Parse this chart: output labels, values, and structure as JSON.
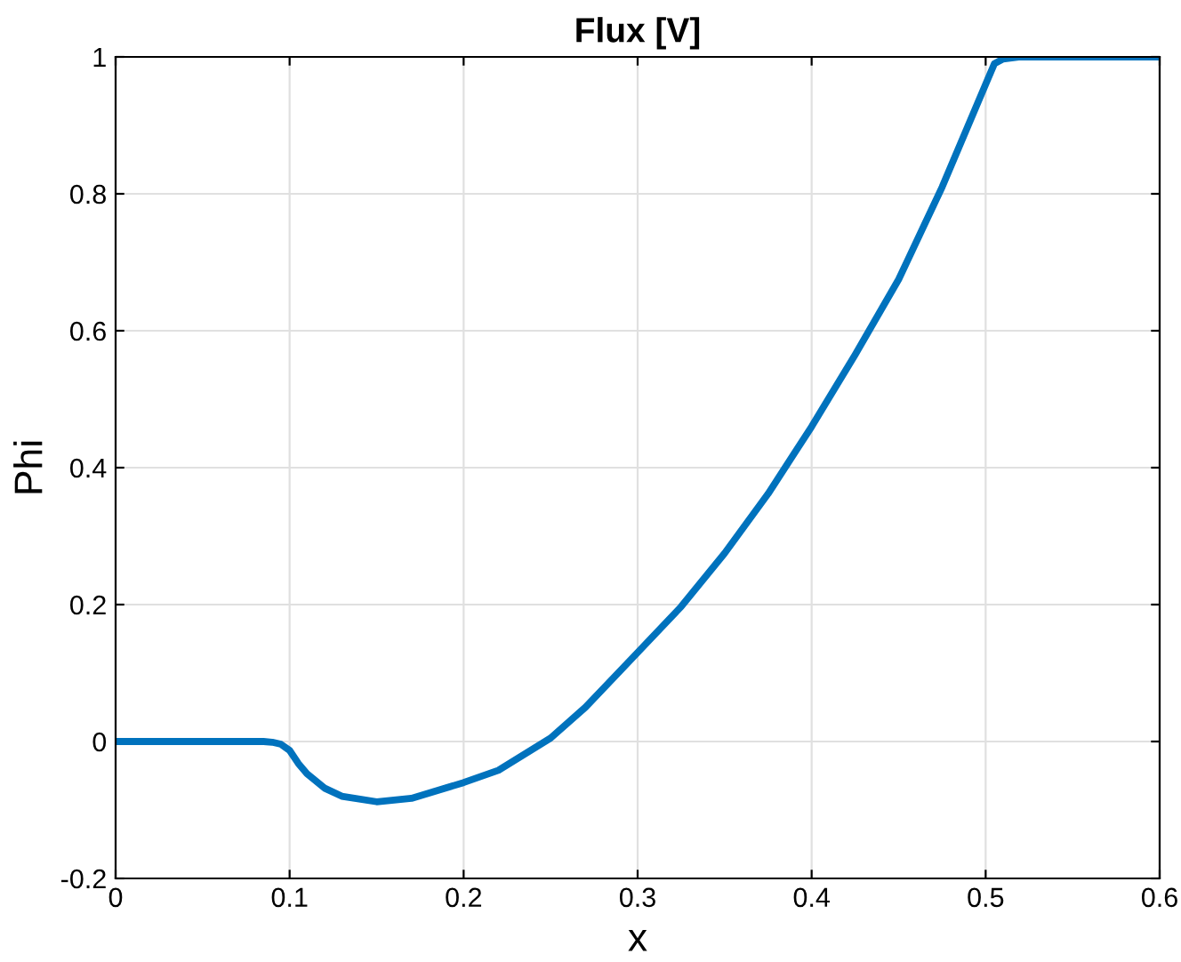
{
  "chart_data": {
    "type": "line",
    "title": "Flux [V]",
    "xlabel": "x",
    "ylabel": "Phi",
    "series": [
      {
        "color": "#0072bd",
        "x": [
          0,
          0.05,
          0.085,
          0.09,
          0.095,
          0.1,
          0.105,
          0.11,
          0.12,
          0.13,
          0.15,
          0.17,
          0.2,
          0.22,
          0.25,
          0.27,
          0.3,
          0.325,
          0.35,
          0.375,
          0.4,
          0.425,
          0.45,
          0.475,
          0.5,
          0.505,
          0.51,
          0.52,
          0.55,
          0.6
        ],
        "values": [
          0,
          0,
          0,
          -0.001,
          -0.004,
          -0.013,
          -0.032,
          -0.047,
          -0.068,
          -0.08,
          -0.088,
          -0.083,
          -0.06,
          -0.042,
          0.005,
          0.05,
          0.13,
          0.197,
          0.275,
          0.362,
          0.46,
          0.565,
          0.675,
          0.81,
          0.96,
          0.99,
          0.997,
          1,
          1,
          1
        ]
      }
    ],
    "xlim": [
      0,
      0.6
    ],
    "ylim": [
      -0.2,
      1
    ],
    "xticks": [
      0,
      0.1,
      0.2,
      0.3,
      0.4,
      0.5,
      0.6
    ],
    "yticks": [
      -0.2,
      0,
      0.2,
      0.4,
      0.6,
      0.8,
      1
    ],
    "grid": true,
    "line_style": "solid",
    "marker": "none"
  }
}
